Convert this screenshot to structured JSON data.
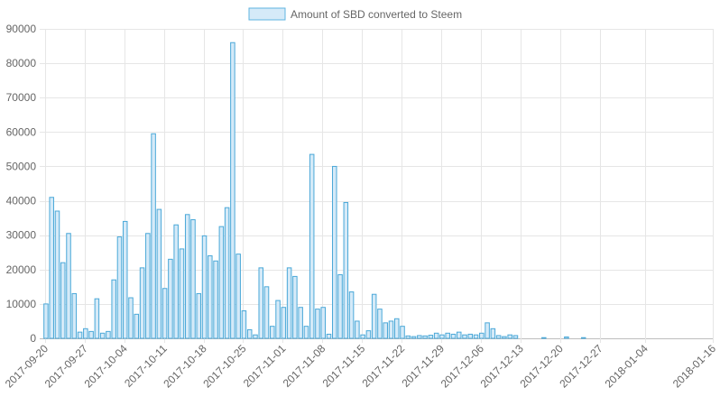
{
  "chart_data": {
    "type": "bar",
    "legend": {
      "label": "Amount of SBD converted to Steem",
      "position": "top",
      "fill_color": "#d5eaf8",
      "border_color": "#5fb4e0"
    },
    "bar_fill_color": "#d5eaf8",
    "bar_border_color": "#4aa8d8",
    "grid": true,
    "ylim": [
      0,
      90000
    ],
    "y_ticks": [
      "0",
      "10000",
      "20000",
      "30000",
      "40000",
      "50000",
      "60000",
      "70000",
      "80000",
      "90000"
    ],
    "x_tick_labels": [
      "2017-09-20",
      "2017-09-27",
      "2017-10-04",
      "2017-10-11",
      "2017-10-18",
      "2017-10-25",
      "2017-11-01",
      "2017-11-08",
      "2017-11-15",
      "2017-11-22",
      "2017-11-29",
      "2017-12-06",
      "2017-12-13",
      "2017-12-20",
      "2017-12-27",
      "2018-01-04",
      "2018-01-16"
    ],
    "x_start": "2017-09-20",
    "x_end": "2018-01-16",
    "values": [
      10000,
      41000,
      37000,
      22000,
      30500,
      13000,
      1800,
      2800,
      2000,
      11500,
      1500,
      2000,
      17000,
      29500,
      34000,
      11800,
      7000,
      20500,
      30500,
      59500,
      37500,
      14500,
      23000,
      33000,
      26000,
      36000,
      34500,
      13000,
      29800,
      24000,
      22500,
      32500,
      38000,
      86000,
      24500,
      8000,
      2500,
      1000,
      20500,
      15000,
      3500,
      11000,
      9000,
      20500,
      18000,
      9000,
      3500,
      53500,
      8500,
      9000,
      1200,
      50000,
      18500,
      39500,
      13500,
      5000,
      1000,
      2200,
      12800,
      8500,
      4500,
      5000,
      5700,
      3500,
      700,
      500,
      800,
      700,
      900,
      1500,
      1000,
      1500,
      1200,
      1800,
      1000,
      1200,
      1000,
      1500,
      4500,
      2800,
      800,
      500,
      1000,
      800,
      0,
      0,
      0,
      0,
      200,
      0,
      0,
      0,
      400,
      0,
      0,
      200,
      0,
      0,
      0,
      0,
      0,
      0,
      0,
      0,
      0,
      0,
      0,
      0,
      0,
      0,
      0,
      0,
      0,
      0,
      0,
      0,
      0,
      0
    ]
  }
}
